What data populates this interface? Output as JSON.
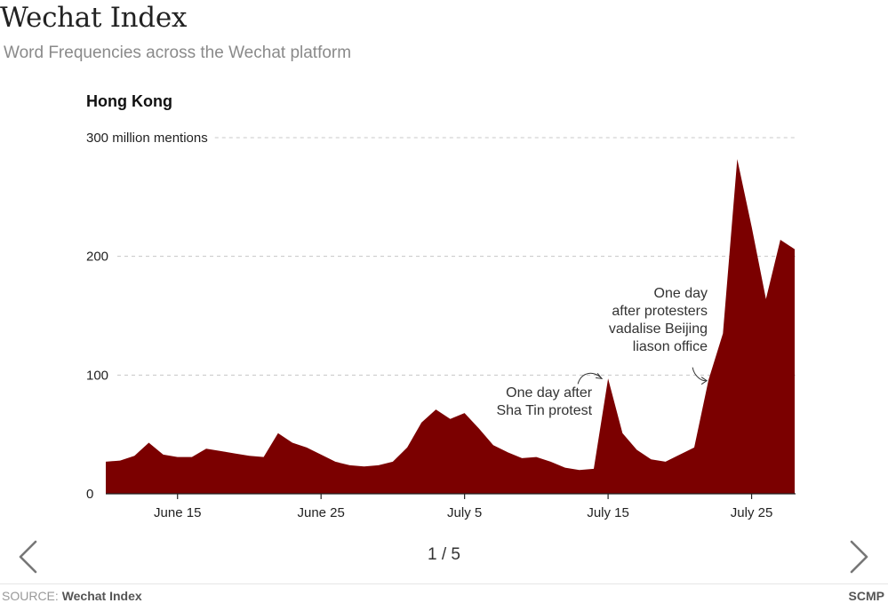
{
  "header": {
    "title": "Wechat Index",
    "subtitle": "Word Frequencies across the Wechat platform"
  },
  "chart_data": {
    "type": "area",
    "title": "Hong Kong",
    "color": "#7b0000",
    "ylim": [
      0,
      300
    ],
    "ytick_values": [
      0,
      100,
      200,
      300
    ],
    "ytick_labels": [
      "0",
      "100",
      "200",
      "300 million mentions"
    ],
    "grid": true,
    "xtick_labels": [
      "June 15",
      "June 25",
      "July 5",
      "July 15",
      "July 25"
    ],
    "xtick_dates": [
      "June 15",
      "June 25",
      "July 5",
      "July 15",
      "July 25"
    ],
    "x": [
      "June 10",
      "June 11",
      "June 12",
      "June 13",
      "June 14",
      "June 15",
      "June 16",
      "June 17",
      "June 18",
      "June 19",
      "June 20",
      "June 21",
      "June 22",
      "June 23",
      "June 24",
      "June 25",
      "June 26",
      "June 27",
      "June 28",
      "June 29",
      "June 30",
      "July 1",
      "July 2",
      "July 3",
      "July 4",
      "July 5",
      "July 6",
      "July 7",
      "July 8",
      "July 9",
      "July 10",
      "July 11",
      "July 12",
      "July 13",
      "July 14",
      "July 15",
      "July 16",
      "July 17",
      "July 18",
      "July 19",
      "July 20",
      "July 21",
      "July 22",
      "July 23",
      "July 24",
      "July 25",
      "July 26",
      "July 27",
      "July 28"
    ],
    "series": [
      {
        "values": [
          27,
          28,
          32,
          43,
          33,
          31,
          31,
          38,
          36,
          34,
          32,
          31,
          51,
          43,
          39,
          33,
          27,
          24,
          23,
          24,
          27,
          39,
          60,
          71,
          63,
          68,
          55,
          41,
          35,
          30,
          31,
          27,
          22,
          20,
          21,
          97,
          51,
          37,
          29,
          27,
          33,
          39,
          96,
          135,
          282,
          225,
          164,
          214,
          206
        ]
      }
    ],
    "annotations": [
      {
        "lines": [
          "One day after",
          "Sha Tin protest"
        ],
        "x": "July 15",
        "y": 97
      },
      {
        "lines": [
          "One day",
          "after protesters",
          "vadalise Beijing",
          "liason office"
        ],
        "x": "July 22",
        "y": 96
      }
    ]
  },
  "pager": {
    "text": "1 / 5"
  },
  "nav": {
    "prev_icon": "chevron-left-icon",
    "next_icon": "chevron-right-icon"
  },
  "footer": {
    "source_label": "SOURCE:",
    "source_name": "Wechat Index",
    "brand": "SCMP"
  }
}
